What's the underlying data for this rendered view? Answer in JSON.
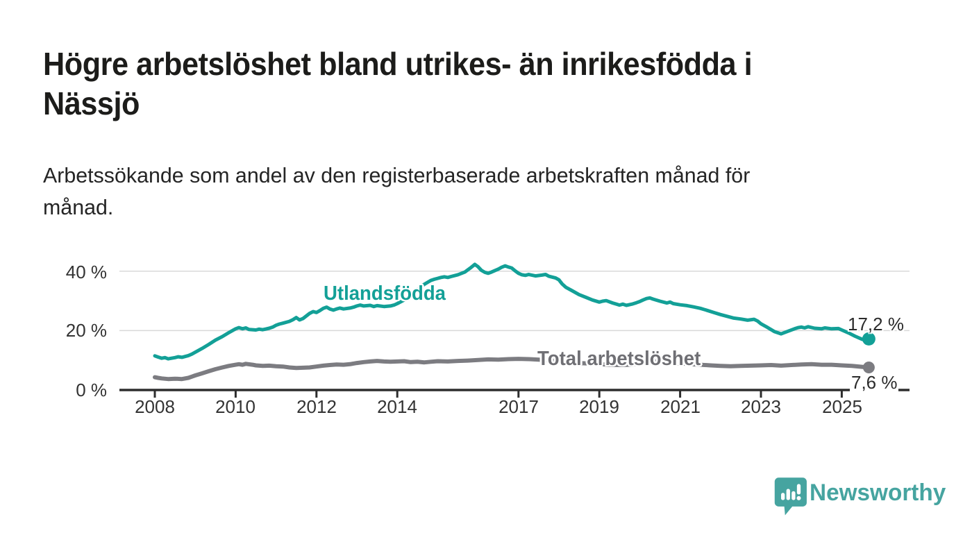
{
  "title_lines": [
    "Högre arbetslöshet bland utrikes- än inrikesfödda i",
    "Nässjö"
  ],
  "subtitle_lines": [
    "Arbetssökande som andel av den registerbaserade arbetskraften månad för",
    "månad."
  ],
  "branding": {
    "logo_text": "Newsworthy",
    "logo_color": "#46a4a0",
    "logo_icon": "speech-bubble-bar-chart"
  },
  "colors": {
    "foreign_born_line": "#13a097",
    "total_line": "#7c7c81",
    "axis": "#2d2d2d",
    "grid": "#d9d9d9",
    "tick_text": "#333333"
  },
  "chart_data": {
    "type": "line",
    "unit": "%",
    "grid": "horizontal",
    "xlim": [
      2008,
      2026
    ],
    "ylim": [
      0,
      44
    ],
    "x_axis": {
      "ticks": [
        {
          "value": 2008,
          "label": "2008"
        },
        {
          "value": 2010,
          "label": "2010"
        },
        {
          "value": 2012,
          "label": "2012"
        },
        {
          "value": 2014,
          "label": "2014"
        },
        {
          "value": 2017,
          "label": "2017"
        },
        {
          "value": 2019,
          "label": "2019"
        },
        {
          "value": 2021,
          "label": "2021"
        },
        {
          "value": 2023,
          "label": "2023"
        },
        {
          "value": 2025,
          "label": "2025"
        }
      ]
    },
    "y_axis": {
      "ticks": [
        {
          "value": 40,
          "label": "40 %"
        },
        {
          "value": 20,
          "label": "20 %"
        },
        {
          "value": 0,
          "label": "0 %"
        }
      ]
    },
    "series": [
      {
        "name": "Utlandsfödda",
        "color": "#13a097",
        "end_label": "17,2 %",
        "end_value": 17.2,
        "points": [
          [
            2008.0,
            11.5
          ],
          [
            2008.08,
            11.1
          ],
          [
            2008.17,
            10.7
          ],
          [
            2008.25,
            10.9
          ],
          [
            2008.33,
            10.5
          ],
          [
            2008.5,
            10.9
          ],
          [
            2008.58,
            11.2
          ],
          [
            2008.67,
            11.0
          ],
          [
            2008.83,
            11.6
          ],
          [
            2008.92,
            12.1
          ],
          [
            2009.0,
            12.7
          ],
          [
            2009.17,
            14.0
          ],
          [
            2009.33,
            15.3
          ],
          [
            2009.5,
            16.8
          ],
          [
            2009.67,
            18.0
          ],
          [
            2009.83,
            19.3
          ],
          [
            2009.92,
            20.0
          ],
          [
            2010.0,
            20.6
          ],
          [
            2010.08,
            21.0
          ],
          [
            2010.17,
            20.6
          ],
          [
            2010.25,
            20.9
          ],
          [
            2010.33,
            20.4
          ],
          [
            2010.5,
            20.2
          ],
          [
            2010.58,
            20.5
          ],
          [
            2010.67,
            20.3
          ],
          [
            2010.83,
            20.8
          ],
          [
            2010.92,
            21.2
          ],
          [
            2011.0,
            21.8
          ],
          [
            2011.08,
            22.2
          ],
          [
            2011.17,
            22.5
          ],
          [
            2011.33,
            23.1
          ],
          [
            2011.42,
            23.7
          ],
          [
            2011.5,
            24.4
          ],
          [
            2011.58,
            23.6
          ],
          [
            2011.67,
            24.1
          ],
          [
            2011.83,
            25.8
          ],
          [
            2011.92,
            26.4
          ],
          [
            2012.0,
            26.1
          ],
          [
            2012.08,
            26.7
          ],
          [
            2012.17,
            27.5
          ],
          [
            2012.25,
            27.9
          ],
          [
            2012.33,
            27.3
          ],
          [
            2012.42,
            26.9
          ],
          [
            2012.5,
            27.3
          ],
          [
            2012.58,
            27.6
          ],
          [
            2012.67,
            27.3
          ],
          [
            2012.83,
            27.6
          ],
          [
            2012.92,
            27.9
          ],
          [
            2013.0,
            28.3
          ],
          [
            2013.08,
            28.6
          ],
          [
            2013.17,
            28.3
          ],
          [
            2013.33,
            28.5
          ],
          [
            2013.42,
            28.1
          ],
          [
            2013.5,
            28.4
          ],
          [
            2013.67,
            28.1
          ],
          [
            2013.83,
            28.3
          ],
          [
            2013.92,
            28.6
          ],
          [
            2014.0,
            29.1
          ],
          [
            2014.17,
            30.3
          ],
          [
            2014.33,
            31.9
          ],
          [
            2014.5,
            33.8
          ],
          [
            2014.67,
            35.6
          ],
          [
            2014.83,
            36.9
          ],
          [
            2014.92,
            37.3
          ],
          [
            2015.0,
            37.6
          ],
          [
            2015.08,
            37.9
          ],
          [
            2015.17,
            38.1
          ],
          [
            2015.25,
            37.9
          ],
          [
            2015.33,
            38.2
          ],
          [
            2015.5,
            38.8
          ],
          [
            2015.67,
            39.7
          ],
          [
            2015.83,
            41.3
          ],
          [
            2015.92,
            42.3
          ],
          [
            2016.0,
            41.5
          ],
          [
            2016.08,
            40.3
          ],
          [
            2016.17,
            39.6
          ],
          [
            2016.25,
            39.3
          ],
          [
            2016.33,
            39.7
          ],
          [
            2016.5,
            40.7
          ],
          [
            2016.58,
            41.3
          ],
          [
            2016.67,
            41.8
          ],
          [
            2016.75,
            41.4
          ],
          [
            2016.83,
            41.1
          ],
          [
            2016.92,
            40.1
          ],
          [
            2017.0,
            39.3
          ],
          [
            2017.08,
            38.8
          ],
          [
            2017.17,
            38.6
          ],
          [
            2017.25,
            38.9
          ],
          [
            2017.42,
            38.4
          ],
          [
            2017.58,
            38.7
          ],
          [
            2017.67,
            38.9
          ],
          [
            2017.75,
            38.3
          ],
          [
            2017.92,
            37.7
          ],
          [
            2018.0,
            37.1
          ],
          [
            2018.08,
            35.7
          ],
          [
            2018.17,
            34.6
          ],
          [
            2018.33,
            33.4
          ],
          [
            2018.5,
            32.1
          ],
          [
            2018.67,
            31.2
          ],
          [
            2018.83,
            30.3
          ],
          [
            2019.0,
            29.6
          ],
          [
            2019.08,
            29.9
          ],
          [
            2019.17,
            30.1
          ],
          [
            2019.33,
            29.3
          ],
          [
            2019.5,
            28.6
          ],
          [
            2019.58,
            28.9
          ],
          [
            2019.67,
            28.5
          ],
          [
            2019.83,
            29.0
          ],
          [
            2019.92,
            29.4
          ],
          [
            2020.0,
            29.8
          ],
          [
            2020.08,
            30.3
          ],
          [
            2020.17,
            30.8
          ],
          [
            2020.25,
            31.0
          ],
          [
            2020.33,
            30.6
          ],
          [
            2020.5,
            29.9
          ],
          [
            2020.67,
            29.3
          ],
          [
            2020.75,
            29.6
          ],
          [
            2020.83,
            29.1
          ],
          [
            2021.0,
            28.7
          ],
          [
            2021.17,
            28.4
          ],
          [
            2021.33,
            28.0
          ],
          [
            2021.5,
            27.5
          ],
          [
            2021.67,
            26.8
          ],
          [
            2021.83,
            26.1
          ],
          [
            2022.0,
            25.4
          ],
          [
            2022.17,
            24.8
          ],
          [
            2022.33,
            24.2
          ],
          [
            2022.5,
            23.9
          ],
          [
            2022.67,
            23.5
          ],
          [
            2022.83,
            23.8
          ],
          [
            2022.92,
            23.2
          ],
          [
            2023.0,
            22.3
          ],
          [
            2023.17,
            21.0
          ],
          [
            2023.33,
            19.7
          ],
          [
            2023.5,
            18.9
          ],
          [
            2023.67,
            19.8
          ],
          [
            2023.83,
            20.6
          ],
          [
            2023.92,
            21.0
          ],
          [
            2024.0,
            21.2
          ],
          [
            2024.08,
            20.9
          ],
          [
            2024.17,
            21.3
          ],
          [
            2024.33,
            20.8
          ],
          [
            2024.5,
            20.6
          ],
          [
            2024.58,
            20.9
          ],
          [
            2024.75,
            20.6
          ],
          [
            2024.92,
            20.7
          ],
          [
            2025.0,
            20.2
          ],
          [
            2025.17,
            19.2
          ],
          [
            2025.33,
            18.1
          ],
          [
            2025.5,
            17.1
          ],
          [
            2025.58,
            16.8
          ],
          [
            2025.67,
            17.2
          ]
        ]
      },
      {
        "name": "Total arbetslöshet",
        "color": "#7c7c81",
        "end_label": "7,6 %",
        "end_value": 7.6,
        "points": [
          [
            2008.0,
            4.3
          ],
          [
            2008.08,
            4.1
          ],
          [
            2008.17,
            3.9
          ],
          [
            2008.33,
            3.7
          ],
          [
            2008.5,
            3.8
          ],
          [
            2008.67,
            3.7
          ],
          [
            2008.83,
            4.1
          ],
          [
            2008.92,
            4.5
          ],
          [
            2009.0,
            4.9
          ],
          [
            2009.17,
            5.6
          ],
          [
            2009.33,
            6.3
          ],
          [
            2009.5,
            7.0
          ],
          [
            2009.67,
            7.6
          ],
          [
            2009.83,
            8.1
          ],
          [
            2010.0,
            8.5
          ],
          [
            2010.08,
            8.7
          ],
          [
            2010.17,
            8.5
          ],
          [
            2010.25,
            8.8
          ],
          [
            2010.42,
            8.5
          ],
          [
            2010.5,
            8.3
          ],
          [
            2010.67,
            8.1
          ],
          [
            2010.83,
            8.2
          ],
          [
            2011.0,
            8.0
          ],
          [
            2011.17,
            7.9
          ],
          [
            2011.33,
            7.6
          ],
          [
            2011.5,
            7.4
          ],
          [
            2011.67,
            7.5
          ],
          [
            2011.83,
            7.6
          ],
          [
            2012.0,
            7.9
          ],
          [
            2012.17,
            8.2
          ],
          [
            2012.33,
            8.4
          ],
          [
            2012.5,
            8.6
          ],
          [
            2012.67,
            8.5
          ],
          [
            2012.83,
            8.7
          ],
          [
            2013.0,
            9.1
          ],
          [
            2013.17,
            9.4
          ],
          [
            2013.33,
            9.6
          ],
          [
            2013.5,
            9.8
          ],
          [
            2013.67,
            9.6
          ],
          [
            2013.83,
            9.5
          ],
          [
            2014.0,
            9.6
          ],
          [
            2014.17,
            9.7
          ],
          [
            2014.33,
            9.4
          ],
          [
            2014.5,
            9.5
          ],
          [
            2014.67,
            9.3
          ],
          [
            2014.83,
            9.5
          ],
          [
            2015.0,
            9.7
          ],
          [
            2015.25,
            9.6
          ],
          [
            2015.5,
            9.8
          ],
          [
            2015.75,
            9.9
          ],
          [
            2016.0,
            10.1
          ],
          [
            2016.25,
            10.3
          ],
          [
            2016.5,
            10.2
          ],
          [
            2016.75,
            10.4
          ],
          [
            2017.0,
            10.5
          ],
          [
            2017.25,
            10.4
          ],
          [
            2017.5,
            10.2
          ],
          [
            2017.75,
            10.0
          ],
          [
            2018.0,
            9.7
          ],
          [
            2018.25,
            9.4
          ],
          [
            2018.5,
            9.1
          ],
          [
            2018.75,
            8.9
          ],
          [
            2019.0,
            8.7
          ],
          [
            2019.25,
            8.5
          ],
          [
            2019.5,
            8.4
          ],
          [
            2019.75,
            8.5
          ],
          [
            2020.0,
            8.8
          ],
          [
            2020.17,
            9.3
          ],
          [
            2020.33,
            9.6
          ],
          [
            2020.5,
            9.5
          ],
          [
            2020.75,
            9.3
          ],
          [
            2021.0,
            9.0
          ],
          [
            2021.25,
            8.7
          ],
          [
            2021.5,
            8.5
          ],
          [
            2021.75,
            8.3
          ],
          [
            2022.0,
            8.1
          ],
          [
            2022.25,
            8.0
          ],
          [
            2022.5,
            8.1
          ],
          [
            2022.75,
            8.2
          ],
          [
            2023.0,
            8.3
          ],
          [
            2023.25,
            8.4
          ],
          [
            2023.5,
            8.2
          ],
          [
            2023.75,
            8.4
          ],
          [
            2024.0,
            8.6
          ],
          [
            2024.25,
            8.7
          ],
          [
            2024.5,
            8.5
          ],
          [
            2024.75,
            8.5
          ],
          [
            2025.0,
            8.3
          ],
          [
            2025.25,
            8.1
          ],
          [
            2025.5,
            7.8
          ],
          [
            2025.67,
            7.6
          ]
        ]
      }
    ]
  }
}
